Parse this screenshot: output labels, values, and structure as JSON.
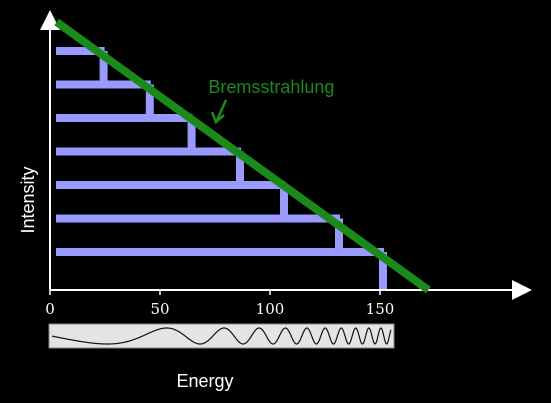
{
  "chart_data": {
    "type": "line",
    "xlabel": "Energy",
    "ylabel": "Intensity",
    "xlim": [
      0,
      210
    ],
    "ylim": [
      0,
      7.6
    ],
    "x_ticks": [
      0,
      50,
      100,
      150
    ],
    "x_tick_labels": [
      "0",
      "50",
      "100",
      "150"
    ],
    "grid": false,
    "series": [
      {
        "name": "Bremsstrahlung",
        "color": "#1a8a1a",
        "x": [
          3,
          172
        ],
        "y": [
          7.6,
          0
        ]
      }
    ],
    "energy_levels": {
      "color": "#9999ff",
      "values": [
        {
          "level": 7,
          "x_start": 0,
          "x_end": 23
        },
        {
          "level": 6,
          "x_start": 0,
          "x_end": 44
        },
        {
          "level": 5,
          "x_start": 0,
          "x_end": 63
        },
        {
          "level": 4,
          "x_start": 0,
          "x_end": 85
        },
        {
          "level": 3,
          "x_start": 0,
          "x_end": 105
        },
        {
          "level": 2,
          "x_start": 0,
          "x_end": 130
        },
        {
          "level": 1,
          "x_start": 0,
          "x_end": 150
        }
      ]
    },
    "annotations": [
      {
        "text": "Bremsstrahlung",
        "color": "#1a8a1a",
        "x": 77,
        "y": 5.8
      }
    ],
    "wave_strip": {
      "label": "",
      "frequency": "increasing with energy"
    }
  }
}
